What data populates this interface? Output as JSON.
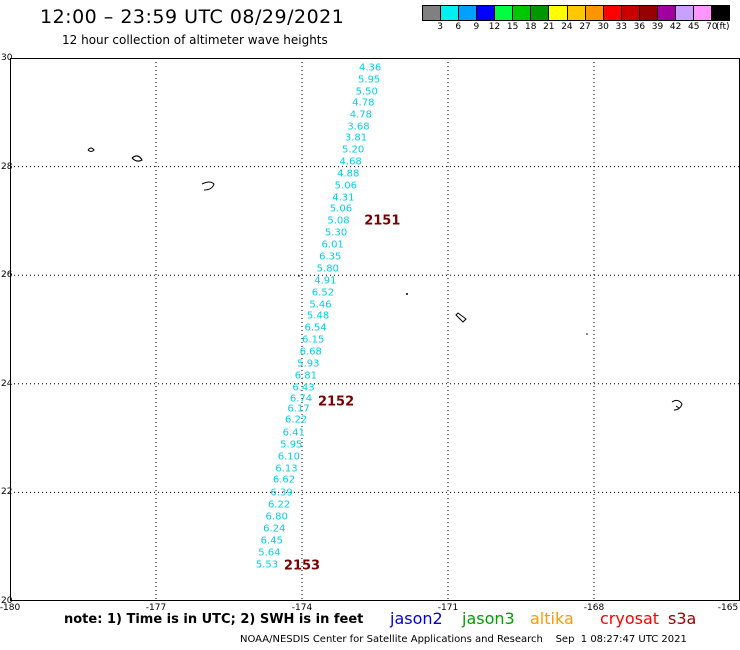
{
  "header": {
    "title": "12:00 – 23:59 UTC 08/29/2021",
    "subtitle": "12 hour collection of altimeter wave heights"
  },
  "legend": {
    "colors": [
      "#808080",
      "#00f0f0",
      "#00a0ff",
      "#0000ff",
      "#00ff40",
      "#00c800",
      "#009600",
      "#ffff00",
      "#ffc800",
      "#ff9600",
      "#ff0000",
      "#c80000",
      "#960000",
      "#a000a0",
      "#c8a0ff",
      "#ff96ff",
      "#000000"
    ],
    "labels": [
      "3",
      "6",
      "9",
      "12",
      "15",
      "18",
      "21",
      "24",
      "27",
      "30",
      "33",
      "36",
      "39",
      "42",
      "45",
      "70"
    ],
    "unit": "(ft)"
  },
  "axes": {
    "x_ticks": [
      "-180",
      "-177",
      "-174",
      "-171",
      "-168",
      "-165"
    ],
    "y_ticks": [
      "30",
      "28",
      "26",
      "24",
      "22",
      "20"
    ]
  },
  "chart_data": {
    "type": "scatter",
    "xlim": [
      -180,
      -165
    ],
    "ylim": [
      20,
      30
    ],
    "grid": true,
    "points": [
      {
        "lon": -172.6,
        "lat": 29.82,
        "swh": "4.36"
      },
      {
        "lon": -172.62,
        "lat": 29.6,
        "swh": "5.95"
      },
      {
        "lon": -172.67,
        "lat": 29.38,
        "swh": "5.50"
      },
      {
        "lon": -172.74,
        "lat": 29.17,
        "swh": "4.78"
      },
      {
        "lon": -172.79,
        "lat": 28.95,
        "swh": "4.78"
      },
      {
        "lon": -172.84,
        "lat": 28.73,
        "swh": "3.68"
      },
      {
        "lon": -172.89,
        "lat": 28.52,
        "swh": "3.81"
      },
      {
        "lon": -172.95,
        "lat": 28.3,
        "swh": "5.20"
      },
      {
        "lon": -173.0,
        "lat": 28.08,
        "swh": "4.68"
      },
      {
        "lon": -173.05,
        "lat": 27.86,
        "swh": "4.88"
      },
      {
        "lon": -173.1,
        "lat": 27.65,
        "swh": "5.06"
      },
      {
        "lon": -173.15,
        "lat": 27.43,
        "swh": "4.31"
      },
      {
        "lon": -173.2,
        "lat": 27.21,
        "swh": "5.06"
      },
      {
        "lon": -173.25,
        "lat": 27.0,
        "swh": "5.08"
      },
      {
        "lon": -173.3,
        "lat": 26.78,
        "swh": "5.30"
      },
      {
        "lon": -173.37,
        "lat": 26.56,
        "swh": "6.01"
      },
      {
        "lon": -173.42,
        "lat": 26.34,
        "swh": "6.35"
      },
      {
        "lon": -173.47,
        "lat": 26.12,
        "swh": "5.80"
      },
      {
        "lon": -173.52,
        "lat": 25.9,
        "swh": "4.91"
      },
      {
        "lon": -173.57,
        "lat": 25.68,
        "swh": "6.52"
      },
      {
        "lon": -173.62,
        "lat": 25.46,
        "swh": "5.46"
      },
      {
        "lon": -173.67,
        "lat": 25.24,
        "swh": "5.48"
      },
      {
        "lon": -173.72,
        "lat": 25.02,
        "swh": "6.54"
      },
      {
        "lon": -173.77,
        "lat": 24.8,
        "swh": "6.15"
      },
      {
        "lon": -173.82,
        "lat": 24.59,
        "swh": "6.68"
      },
      {
        "lon": -173.87,
        "lat": 24.37,
        "swh": "5.93"
      },
      {
        "lon": -173.92,
        "lat": 24.15,
        "swh": "6.81"
      },
      {
        "lon": -173.97,
        "lat": 23.93,
        "swh": "6.43"
      },
      {
        "lon": -174.02,
        "lat": 23.72,
        "swh": "6.74"
      },
      {
        "lon": -174.07,
        "lat": 23.54,
        "swh": "6.17"
      },
      {
        "lon": -174.12,
        "lat": 23.33,
        "swh": "6.22"
      },
      {
        "lon": -174.17,
        "lat": 23.1,
        "swh": "6.41"
      },
      {
        "lon": -174.22,
        "lat": 22.88,
        "swh": "5.95"
      },
      {
        "lon": -174.27,
        "lat": 22.66,
        "swh": "6.10"
      },
      {
        "lon": -174.32,
        "lat": 22.44,
        "swh": "6.13"
      },
      {
        "lon": -174.37,
        "lat": 22.22,
        "swh": "6.62"
      },
      {
        "lon": -174.42,
        "lat": 21.99,
        "swh": "6.39"
      },
      {
        "lon": -174.47,
        "lat": 21.77,
        "swh": "6.22"
      },
      {
        "lon": -174.52,
        "lat": 21.55,
        "swh": "6.80"
      },
      {
        "lon": -174.57,
        "lat": 21.33,
        "swh": "6.24"
      },
      {
        "lon": -174.62,
        "lat": 21.11,
        "swh": "6.45"
      },
      {
        "lon": -174.67,
        "lat": 20.89,
        "swh": "5.64"
      },
      {
        "lon": -174.72,
        "lat": 20.67,
        "swh": "5.53"
      }
    ],
    "pass_labels": [
      {
        "lon": -172.35,
        "lat": 27.0,
        "label": "2151"
      },
      {
        "lon": -173.3,
        "lat": 23.66,
        "label": "2152"
      },
      {
        "lon": -174.0,
        "lat": 20.65,
        "label": "2153"
      }
    ]
  },
  "footer": {
    "note": "note:  1) Time is in UTC;  2) SWH is in feet",
    "satellites": [
      {
        "name": "jason2",
        "color": "#0000e0"
      },
      {
        "name": "jason3",
        "color": "#00a000"
      },
      {
        "name": "altika",
        "color": "#ff9900"
      },
      {
        "name": "cryosat",
        "color": "#ff0000"
      },
      {
        "name": "s3a",
        "color": "#a00000"
      }
    ],
    "credit": "NOAA/NESDIS Center for Satellite Applications and Research    Sep  1 08:27:47 UTC 2021"
  }
}
